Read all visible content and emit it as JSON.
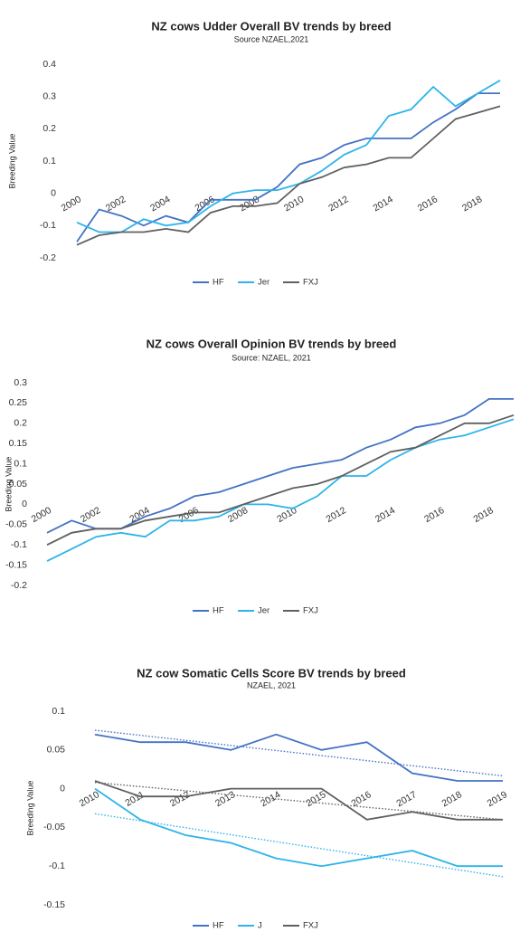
{
  "chart_data": [
    {
      "type": "line",
      "title": "NZ cows Udder Overall BV trends by breed",
      "subtitle": "Source NZAEL,2021",
      "y_label": "Breeding Value",
      "categories": [
        "2000",
        null,
        "2002",
        null,
        "2004",
        null,
        "2006",
        null,
        "2008",
        null,
        "2010",
        null,
        "2012",
        null,
        "2014",
        null,
        "2016",
        null,
        "2018",
        null
      ],
      "ylim": [
        -0.2,
        0.4
      ],
      "yticks": [
        -0.2,
        -0.1,
        0,
        0.1,
        0.2,
        0.3,
        0.4
      ],
      "series": [
        {
          "name": "HF",
          "color": "#4472c4",
          "values": [
            -0.15,
            -0.05,
            -0.07,
            -0.1,
            -0.07,
            -0.09,
            -0.02,
            -0.02,
            -0.02,
            0.02,
            0.09,
            0.11,
            0.15,
            0.17,
            0.17,
            0.17,
            0.22,
            0.26,
            0.31,
            0.31
          ]
        },
        {
          "name": "Jer",
          "color": "#2db4ea",
          "values": [
            -0.09,
            -0.12,
            -0.12,
            -0.08,
            -0.1,
            -0.09,
            -0.04,
            0.0,
            0.01,
            0.01,
            0.03,
            0.07,
            0.12,
            0.15,
            0.24,
            0.26,
            0.33,
            0.27,
            0.31,
            0.35
          ]
        },
        {
          "name": "FXJ",
          "color": "#606060",
          "values": [
            -0.16,
            -0.13,
            -0.12,
            -0.12,
            -0.11,
            -0.12,
            -0.06,
            -0.04,
            -0.04,
            -0.03,
            0.03,
            0.05,
            0.08,
            0.09,
            0.11,
            0.11,
            0.17,
            0.23,
            0.25,
            0.27
          ]
        }
      ]
    },
    {
      "type": "line",
      "title": "NZ cows Overall Opinion BV trends by breed",
      "subtitle": "Source: NZAEL, 2021",
      "y_label": "Breeding Value",
      "categories": [
        "2000",
        null,
        "2002",
        null,
        "2004",
        null,
        "2006",
        null,
        "2008",
        null,
        "2010",
        null,
        "2012",
        null,
        "2014",
        null,
        "2016",
        null,
        "2018",
        null
      ],
      "ylim": [
        -0.2,
        0.3
      ],
      "yticks": [
        -0.2,
        -0.15,
        -0.1,
        -0.05,
        0,
        0.05,
        0.1,
        0.15,
        0.2,
        0.25,
        0.3
      ],
      "series": [
        {
          "name": "HF",
          "color": "#4472c4",
          "values": [
            -0.07,
            -0.04,
            -0.06,
            -0.06,
            -0.03,
            -0.01,
            0.02,
            0.03,
            0.05,
            0.07,
            0.09,
            0.1,
            0.11,
            0.14,
            0.16,
            0.19,
            0.2,
            0.22,
            0.26,
            0.26
          ]
        },
        {
          "name": "Jer",
          "color": "#2db4ea",
          "values": [
            -0.14,
            -0.11,
            -0.08,
            -0.07,
            -0.08,
            -0.04,
            -0.04,
            -0.03,
            0.0,
            0.0,
            -0.01,
            0.02,
            0.07,
            0.07,
            0.11,
            0.14,
            0.16,
            0.17,
            0.19,
            0.21
          ]
        },
        {
          "name": "FXJ",
          "color": "#606060",
          "values": [
            -0.1,
            -0.07,
            -0.06,
            -0.06,
            -0.04,
            -0.03,
            -0.02,
            -0.02,
            0.0,
            0.02,
            0.04,
            0.05,
            0.07,
            0.1,
            0.13,
            0.14,
            0.17,
            0.2,
            0.2,
            0.22
          ]
        }
      ]
    },
    {
      "type": "line",
      "title": "NZ cow Somatic Cells Score BV trends by breed",
      "subtitle": "NZAEL, 2021",
      "y_label": "Breeding Value",
      "categories": [
        "2010",
        "2011",
        "2012",
        "2013",
        "2014",
        "2015",
        "2016",
        "2017",
        "2018",
        "2019"
      ],
      "ylim": [
        -0.15,
        0.1
      ],
      "yticks": [
        -0.15,
        -0.1,
        -0.05,
        0,
        0.05,
        0.1
      ],
      "trendline": true,
      "series": [
        {
          "name": "HF",
          "color": "#4472c4",
          "values": [
            0.07,
            0.06,
            0.06,
            0.05,
            0.07,
            0.05,
            0.06,
            0.02,
            0.01,
            0.01
          ]
        },
        {
          "name": "J",
          "color": "#2db4ea",
          "values": [
            0.0,
            -0.04,
            -0.06,
            -0.07,
            -0.09,
            -0.1,
            -0.09,
            -0.08,
            -0.1,
            -0.1
          ]
        },
        {
          "name": "FXJ",
          "color": "#606060",
          "values": [
            0.01,
            -0.01,
            -0.01,
            0.0,
            0.0,
            0.0,
            -0.04,
            -0.03,
            -0.04,
            -0.04
          ]
        }
      ]
    }
  ]
}
